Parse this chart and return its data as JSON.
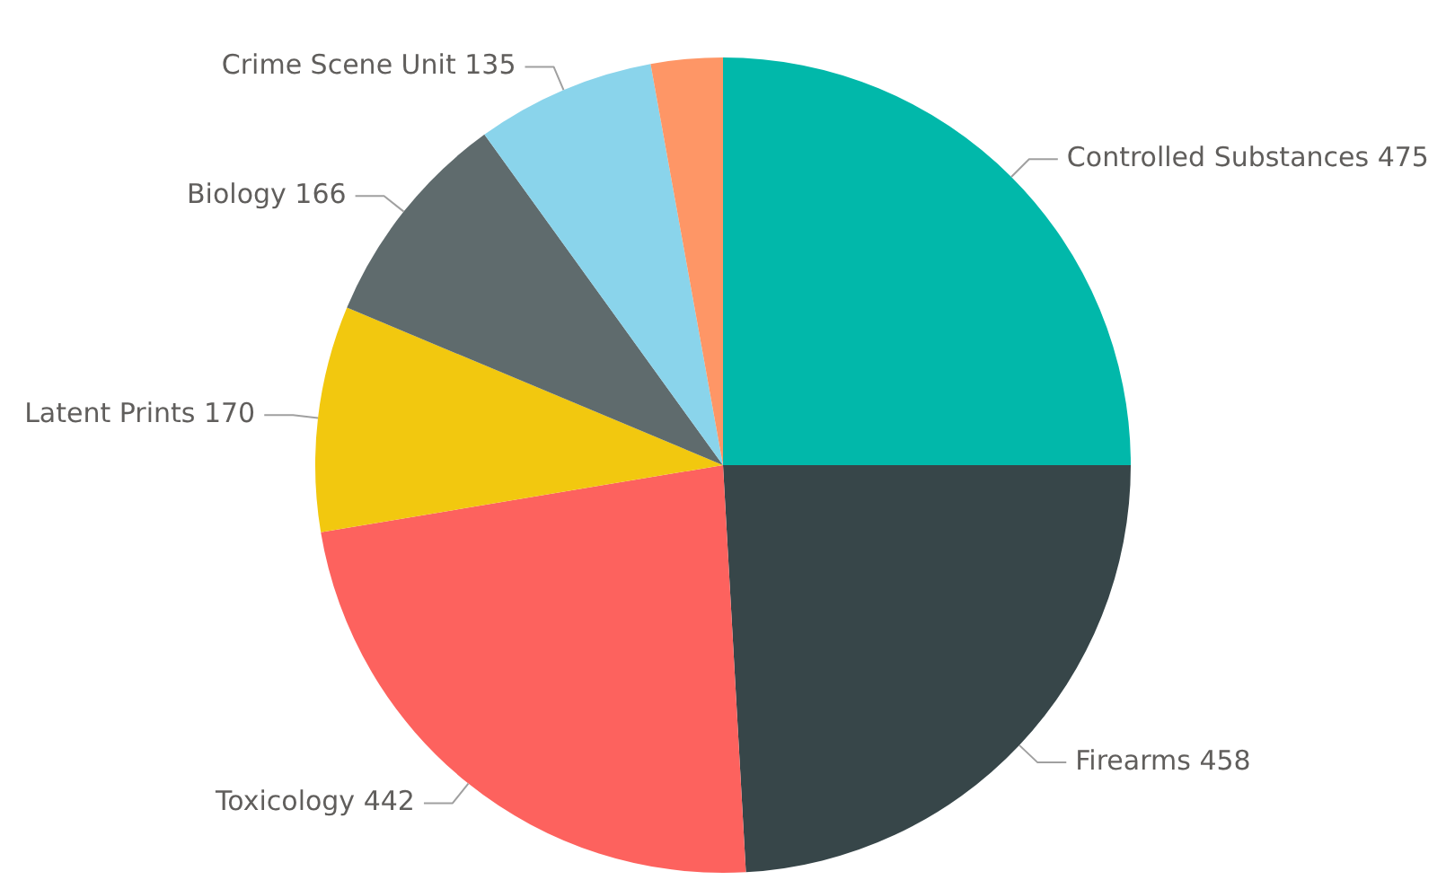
{
  "chart_data": {
    "type": "pie",
    "categories": [
      "Controlled Substances",
      "Firearms",
      "Toxicology",
      "Latent Prints",
      "Biology",
      "Crime Scene Unit",
      null
    ],
    "values": [
      475,
      458,
      442,
      170,
      166,
      135,
      54
    ],
    "value_labels": [
      "475",
      "458",
      "442",
      "170",
      "166",
      "135",
      null
    ],
    "colors": [
      "#01b8aa",
      "#374649",
      "#fd625e",
      "#f2c80f",
      "#5f6b6d",
      "#8ad4eb",
      "#fe9666"
    ],
    "legend": false
  }
}
